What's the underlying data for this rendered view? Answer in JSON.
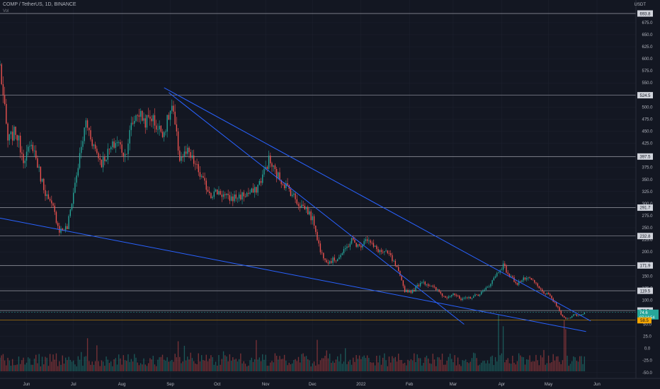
{
  "header": {
    "symbol_line": "COMP / TetherUS, 1D, BINANCE",
    "volume_label": "Vol",
    "currency": "USDT"
  },
  "chart_data": {
    "type": "candlestick",
    "ylim": [
      -62,
      710
    ],
    "y_ticks": [
      675,
      650,
      625,
      600,
      575,
      550,
      525,
      500,
      475,
      450,
      425,
      400,
      375,
      350,
      325,
      300,
      275,
      250,
      225,
      200,
      175,
      150,
      125,
      100,
      75,
      50,
      25,
      0,
      -25,
      -50
    ],
    "x_ticks": [
      {
        "label": "Jun",
        "date": "2021-06-01"
      },
      {
        "label": "Jul",
        "date": "2021-07-01"
      },
      {
        "label": "Aug",
        "date": "2021-08-01"
      },
      {
        "label": "Sep",
        "date": "2021-09-01"
      },
      {
        "label": "Oct",
        "date": "2021-10-01"
      },
      {
        "label": "Nov",
        "date": "2021-11-01"
      },
      {
        "label": "Dec",
        "date": "2021-12-01"
      },
      {
        "label": "2022",
        "date": "2022-01-01"
      },
      {
        "label": "Feb",
        "date": "2022-02-01"
      },
      {
        "label": "Mar",
        "date": "2022-03-01"
      },
      {
        "label": "Apr",
        "date": "2022-04-01"
      },
      {
        "label": "May",
        "date": "2022-05-01"
      },
      {
        "label": "Jun",
        "date": "2022-06-01"
      }
    ],
    "horizontal_levels": [
      {
        "value": 693.8,
        "label": "693.8"
      },
      {
        "value": 524.5,
        "label": "524.5"
      },
      {
        "value": 397.5,
        "label": "397.5"
      },
      {
        "value": 291.7,
        "label": "291.7"
      },
      {
        "value": 232.8,
        "label": "232.8"
      },
      {
        "value": 171.9,
        "label": "171.9"
      },
      {
        "value": 119.5,
        "label": "119.5"
      },
      {
        "value": 78.5,
        "label": "78.5"
      }
    ],
    "current_price": {
      "value": 74.6,
      "label": "74.6",
      "countdown": "07:14:54",
      "color": "#26a69a"
    },
    "low_marker": {
      "value": 58.5,
      "label": "58.5",
      "color": "#f7a600"
    },
    "trendlines": [
      {
        "from": {
          "date": "2021-05-15",
          "value": 270
        },
        "to": {
          "date": "2022-05-25",
          "value": 35
        }
      },
      {
        "from": {
          "date": "2021-08-28",
          "value": 540
        },
        "to": {
          "date": "2022-05-28",
          "value": 57
        }
      },
      {
        "from": {
          "date": "2021-08-31",
          "value": 530
        },
        "to": {
          "date": "2022-03-08",
          "value": 50
        }
      }
    ],
    "price_anchors": [
      [
        "2021-05-15",
        585
      ],
      [
        "2021-05-20",
        430
      ],
      [
        "2021-05-25",
        450
      ],
      [
        "2021-05-30",
        395
      ],
      [
        "2021-06-05",
        420
      ],
      [
        "2021-06-10",
        355
      ],
      [
        "2021-06-15",
        305
      ],
      [
        "2021-06-18",
        290
      ],
      [
        "2021-06-22",
        245
      ],
      [
        "2021-06-27",
        250
      ],
      [
        "2021-07-03",
        360
      ],
      [
        "2021-07-09",
        470
      ],
      [
        "2021-07-14",
        420
      ],
      [
        "2021-07-19",
        385
      ],
      [
        "2021-07-24",
        410
      ],
      [
        "2021-07-29",
        430
      ],
      [
        "2021-08-03",
        400
      ],
      [
        "2021-08-07",
        460
      ],
      [
        "2021-08-11",
        490
      ],
      [
        "2021-08-16",
        470
      ],
      [
        "2021-08-20",
        480
      ],
      [
        "2021-08-24",
        455
      ],
      [
        "2021-08-28",
        450
      ],
      [
        "2021-09-02",
        500
      ],
      [
        "2021-09-07",
        395
      ],
      [
        "2021-09-12",
        405
      ],
      [
        "2021-09-17",
        380
      ],
      [
        "2021-09-22",
        345
      ],
      [
        "2021-09-27",
        320
      ],
      [
        "2021-10-02",
        325
      ],
      [
        "2021-10-08",
        310
      ],
      [
        "2021-10-15",
        315
      ],
      [
        "2021-10-20",
        320
      ],
      [
        "2021-10-25",
        325
      ],
      [
        "2021-10-29",
        350
      ],
      [
        "2021-11-03",
        390
      ],
      [
        "2021-11-08",
        360
      ],
      [
        "2021-11-12",
        345
      ],
      [
        "2021-11-17",
        325
      ],
      [
        "2021-11-22",
        300
      ],
      [
        "2021-11-27",
        290
      ],
      [
        "2021-12-02",
        260
      ],
      [
        "2021-12-06",
        200
      ],
      [
        "2021-12-11",
        180
      ],
      [
        "2021-12-16",
        185
      ],
      [
        "2021-12-21",
        200
      ],
      [
        "2021-12-26",
        225
      ],
      [
        "2021-12-31",
        210
      ],
      [
        "2022-01-04",
        230
      ],
      [
        "2022-01-09",
        210
      ],
      [
        "2022-01-14",
        200
      ],
      [
        "2022-01-19",
        195
      ],
      [
        "2022-01-24",
        165
      ],
      [
        "2022-01-29",
        120
      ],
      [
        "2022-02-03",
        118
      ],
      [
        "2022-02-09",
        140
      ],
      [
        "2022-02-14",
        130
      ],
      [
        "2022-02-19",
        120
      ],
      [
        "2022-02-24",
        105
      ],
      [
        "2022-03-01",
        115
      ],
      [
        "2022-03-06",
        100
      ],
      [
        "2022-03-11",
        105
      ],
      [
        "2022-03-16",
        110
      ],
      [
        "2022-03-21",
        120
      ],
      [
        "2022-03-26",
        140
      ],
      [
        "2022-03-30",
        160
      ],
      [
        "2022-04-02",
        172
      ],
      [
        "2022-04-06",
        150
      ],
      [
        "2022-04-11",
        135
      ],
      [
        "2022-04-16",
        145
      ],
      [
        "2022-04-21",
        140
      ],
      [
        "2022-04-26",
        120
      ],
      [
        "2022-05-01",
        110
      ],
      [
        "2022-05-05",
        95
      ],
      [
        "2022-05-10",
        65
      ],
      [
        "2022-05-13",
        62
      ],
      [
        "2022-05-17",
        70
      ],
      [
        "2022-05-21",
        68
      ],
      [
        "2022-05-24",
        74.6
      ]
    ],
    "volume_spikes": [
      {
        "date": "2021-07-10",
        "value": 0.55
      },
      {
        "date": "2021-09-06",
        "value": 0.5
      },
      {
        "date": "2022-03-30",
        "value": 0.95
      },
      {
        "date": "2022-04-02",
        "value": 0.75
      },
      {
        "date": "2022-05-11",
        "value": 0.85
      },
      {
        "date": "2022-05-12",
        "value": 0.7
      }
    ],
    "colors": {
      "up": "#26a69a",
      "down": "#ef5350",
      "trendline": "#2962ff",
      "level_line": "#d1d4dc",
      "background": "#131722",
      "grid": "#1e2230"
    }
  }
}
